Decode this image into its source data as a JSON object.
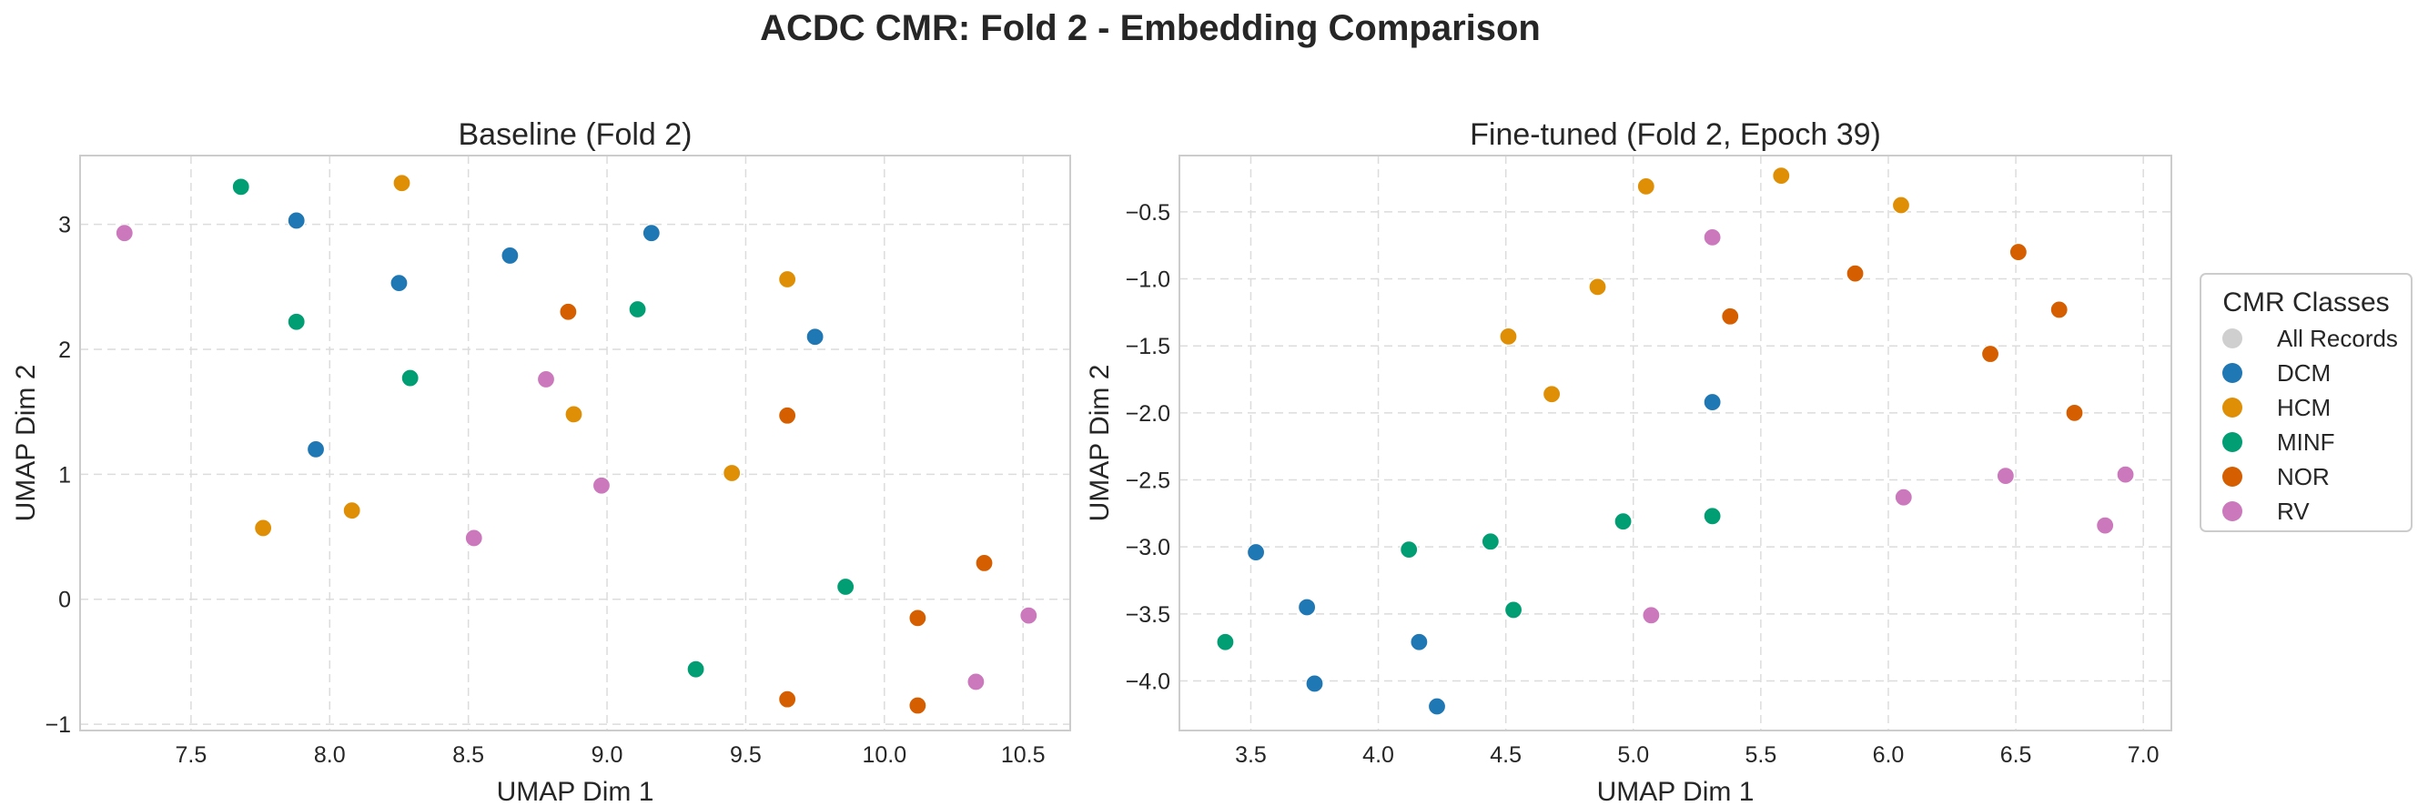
{
  "figure": {
    "title": "ACDC CMR: Fold 2 - Embedding Comparison"
  },
  "colors": {
    "All Records": "#cfcfcf",
    "DCM": "#1f77b4",
    "HCM": "#de8f05",
    "MINF": "#029e73",
    "NOR": "#d55e00",
    "RV": "#cc78bc"
  },
  "legend": {
    "title": "CMR Classes",
    "entries": [
      "All Records",
      "DCM",
      "HCM",
      "MINF",
      "NOR",
      "RV"
    ],
    "placement": "right-center"
  },
  "chart_data": [
    {
      "type": "scatter",
      "title": "Baseline (Fold 2)",
      "xlabel": "UMAP Dim 1",
      "ylabel": "UMAP Dim 2",
      "xlim": [
        7.1,
        10.67
      ],
      "ylim": [
        -1.05,
        3.55
      ],
      "xticks": [
        7.5,
        8.0,
        8.5,
        9.0,
        9.5,
        10.0,
        10.5
      ],
      "xtick_labels": [
        "7.5",
        "8.0",
        "8.5",
        "9.0",
        "9.5",
        "10.0",
        "10.5"
      ],
      "yticks": [
        -1,
        0,
        1,
        2,
        3
      ],
      "ytick_labels": [
        "−1",
        "0",
        "1",
        "2",
        "3"
      ],
      "grid": true,
      "series": [
        {
          "name": "DCM",
          "points": [
            [
              7.88,
              3.03
            ],
            [
              8.25,
              2.53
            ],
            [
              8.65,
              2.75
            ],
            [
              9.16,
              2.93
            ],
            [
              9.75,
              2.1
            ],
            [
              7.95,
              1.2
            ]
          ]
        },
        {
          "name": "HCM",
          "points": [
            [
              8.26,
              3.33
            ],
            [
              9.65,
              2.56
            ],
            [
              8.88,
              1.48
            ],
            [
              9.45,
              1.01
            ],
            [
              8.08,
              0.71
            ],
            [
              7.76,
              0.57
            ]
          ]
        },
        {
          "name": "MINF",
          "points": [
            [
              7.68,
              3.3
            ],
            [
              7.88,
              2.22
            ],
            [
              8.29,
              1.77
            ],
            [
              9.11,
              2.32
            ],
            [
              9.86,
              0.1
            ],
            [
              9.32,
              -0.56
            ]
          ]
        },
        {
          "name": "NOR",
          "points": [
            [
              8.86,
              2.3
            ],
            [
              9.65,
              1.47
            ],
            [
              10.36,
              0.29
            ],
            [
              10.12,
              -0.15
            ],
            [
              9.65,
              -0.8
            ],
            [
              10.12,
              -0.85
            ]
          ]
        },
        {
          "name": "RV",
          "points": [
            [
              7.26,
              2.93
            ],
            [
              8.78,
              1.76
            ],
            [
              8.98,
              0.91
            ],
            [
              8.52,
              0.49
            ],
            [
              10.52,
              -0.13
            ],
            [
              10.33,
              -0.66
            ]
          ]
        }
      ]
    },
    {
      "type": "scatter",
      "title": "Fine-tuned (Fold 2, Epoch 39)",
      "xlabel": "UMAP Dim 1",
      "ylabel": "UMAP Dim 2",
      "xlim": [
        3.22,
        7.11
      ],
      "ylim": [
        -4.37,
        -0.08
      ],
      "xticks": [
        3.5,
        4.0,
        4.5,
        5.0,
        5.5,
        6.0,
        6.5,
        7.0
      ],
      "xtick_labels": [
        "3.5",
        "4.0",
        "4.5",
        "5.0",
        "5.5",
        "6.0",
        "6.5",
        "7.0"
      ],
      "yticks": [
        -4.0,
        -3.5,
        -3.0,
        -2.5,
        -2.0,
        -1.5,
        -1.0,
        -0.5
      ],
      "ytick_labels": [
        "−4.0",
        "−3.5",
        "−3.0",
        "−2.5",
        "−2.0",
        "−1.5",
        "−1.0",
        "−0.5"
      ],
      "grid": true,
      "series": [
        {
          "name": "DCM",
          "points": [
            [
              5.31,
              -1.92
            ],
            [
              3.52,
              -3.04
            ],
            [
              3.72,
              -3.45
            ],
            [
              3.75,
              -4.02
            ],
            [
              4.16,
              -3.71
            ],
            [
              4.23,
              -4.19
            ]
          ]
        },
        {
          "name": "HCM",
          "points": [
            [
              5.05,
              -0.31
            ],
            [
              5.58,
              -0.23
            ],
            [
              6.05,
              -0.45
            ],
            [
              4.86,
              -1.06
            ],
            [
              4.51,
              -1.43
            ],
            [
              4.68,
              -1.86
            ]
          ]
        },
        {
          "name": "MINF",
          "points": [
            [
              3.4,
              -3.71
            ],
            [
              4.12,
              -3.02
            ],
            [
              4.44,
              -2.96
            ],
            [
              4.53,
              -3.47
            ],
            [
              4.96,
              -2.81
            ],
            [
              5.31,
              -2.77
            ]
          ]
        },
        {
          "name": "NOR",
          "points": [
            [
              6.51,
              -0.8
            ],
            [
              5.87,
              -0.96
            ],
            [
              5.38,
              -1.28
            ],
            [
              6.67,
              -1.23
            ],
            [
              6.4,
              -1.56
            ],
            [
              6.73,
              -2.0
            ]
          ]
        },
        {
          "name": "RV",
          "points": [
            [
              5.31,
              -0.69
            ],
            [
              6.06,
              -2.63
            ],
            [
              6.46,
              -2.47
            ],
            [
              6.93,
              -2.46
            ],
            [
              6.85,
              -2.84
            ],
            [
              5.07,
              -3.51
            ]
          ]
        }
      ]
    }
  ]
}
